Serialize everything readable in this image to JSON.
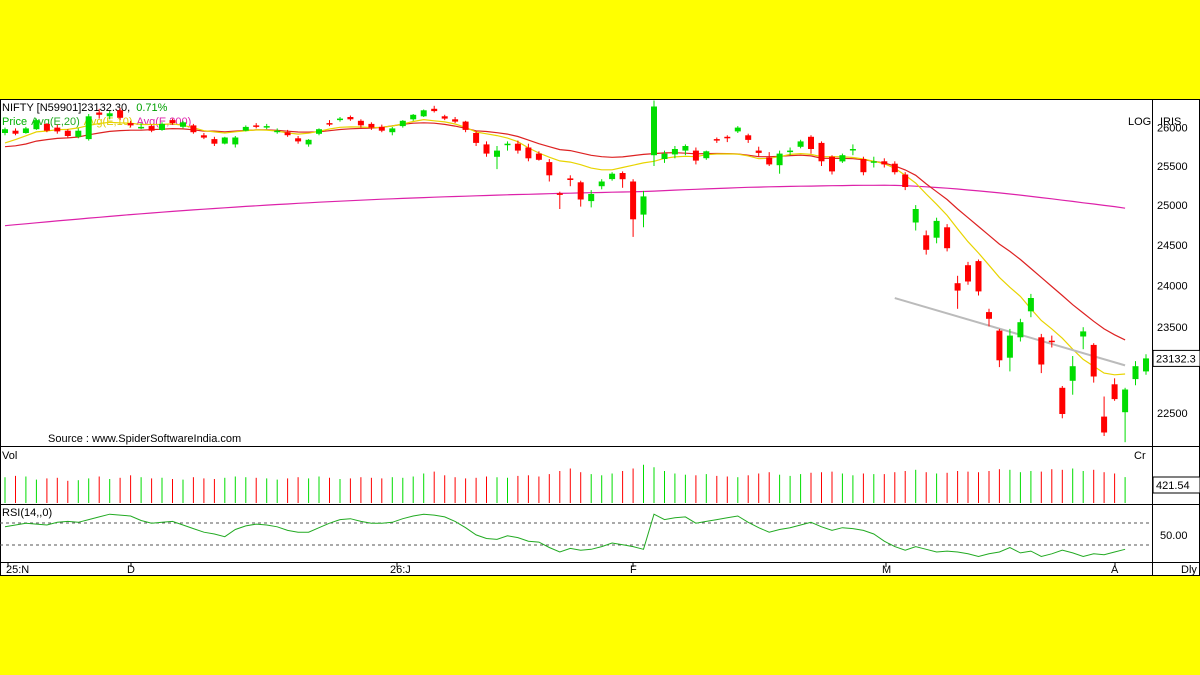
{
  "header": {
    "symbol": "NIFTY [N59901]",
    "last_value": "23132.30,",
    "change_pct": "0.71%",
    "legend": [
      {
        "label": "Price",
        "color": "#00c000"
      },
      {
        "label": "Avg(E,20)",
        "color": "#22aa22"
      },
      {
        "label": "Avg(E,10)",
        "color": "#e8d400"
      },
      {
        "label": "Avg(E,200)",
        "color": "#dd22aa"
      }
    ],
    "log_label": "LOG",
    "brand_label": "IRIS",
    "source": "Source : www.SpiderSoftwareIndia.com"
  },
  "price_axis": {
    "ticks": [
      "26000",
      "25500",
      "25000",
      "24500",
      "24000",
      "23500",
      "22500"
    ],
    "last_price_tag": "23132.3"
  },
  "volume_panel": {
    "label": "Vol",
    "unit_label": "Cr",
    "last_value_tag": "421.54"
  },
  "rsi_panel": {
    "label": "RSI(14,,0)",
    "level_tag": "50.00"
  },
  "x_axis": {
    "labels": [
      "25:N",
      "D",
      "26:J",
      "F",
      "M",
      "A"
    ],
    "period_label": "Dly"
  },
  "chart_data": {
    "type": "candlestick",
    "title": "NIFTY [N59901]",
    "scale": "log",
    "ylim": [
      22150,
      26300
    ],
    "price_ticks": [
      26000,
      25500,
      25000,
      24500,
      24000,
      23500,
      22500
    ],
    "x_labels": [
      "25:N",
      "D",
      "26:J",
      "F",
      "M",
      "A"
    ],
    "up_color": "#00dd00",
    "down_color": "#ff0000",
    "candles": [
      [
        25930,
        26000,
        25900,
        25980
      ],
      [
        25960,
        25990,
        25900,
        25920
      ],
      [
        25930,
        26010,
        25920,
        25990
      ],
      [
        25980,
        26120,
        25970,
        26100
      ],
      [
        26050,
        26060,
        25940,
        25960
      ],
      [
        26000,
        26040,
        25920,
        25950
      ],
      [
        25960,
        25980,
        25870,
        25890
      ],
      [
        25880,
        25990,
        25860,
        25960
      ],
      [
        25850,
        26180,
        25830,
        26150
      ],
      [
        26200,
        26250,
        26120,
        26170
      ],
      [
        26150,
        26220,
        26110,
        26190
      ],
      [
        26230,
        26260,
        26100,
        26130
      ],
      [
        26060,
        26090,
        26000,
        26030
      ],
      [
        26000,
        26060,
        25980,
        26010
      ],
      [
        26020,
        26040,
        25940,
        25960
      ],
      [
        25970,
        26070,
        25960,
        26050
      ],
      [
        26100,
        26120,
        26040,
        26060
      ],
      [
        26010,
        26090,
        25990,
        26070
      ],
      [
        26030,
        26050,
        25920,
        25940
      ],
      [
        25900,
        25930,
        25850,
        25870
      ],
      [
        25850,
        25880,
        25760,
        25790
      ],
      [
        25790,
        25880,
        25780,
        25870
      ],
      [
        25780,
        25890,
        25740,
        25870
      ],
      [
        25960,
        26030,
        25950,
        26010
      ],
      [
        26030,
        26060,
        25990,
        26020
      ],
      [
        26010,
        26050,
        25980,
        26020
      ],
      [
        25940,
        25990,
        25920,
        25960
      ],
      [
        25940,
        25970,
        25880,
        25900
      ],
      [
        25860,
        25890,
        25790,
        25820
      ],
      [
        25780,
        25850,
        25750,
        25840
      ],
      [
        25920,
        25990,
        25900,
        25980
      ],
      [
        26060,
        26100,
        26020,
        26050
      ],
      [
        26100,
        26140,
        26080,
        26120
      ],
      [
        26140,
        26160,
        26090,
        26110
      ],
      [
        26090,
        26110,
        26000,
        26030
      ],
      [
        26050,
        26070,
        25970,
        26000
      ],
      [
        26010,
        26040,
        25940,
        25960
      ],
      [
        25940,
        26010,
        25900,
        25990
      ],
      [
        26020,
        26100,
        26000,
        26090
      ],
      [
        26110,
        26180,
        26090,
        26170
      ],
      [
        26150,
        26240,
        26140,
        26230
      ],
      [
        26250,
        26290,
        26200,
        26220
      ],
      [
        26150,
        26170,
        26100,
        26120
      ],
      [
        26110,
        26140,
        26060,
        26080
      ],
      [
        26080,
        26090,
        25940,
        25970
      ],
      [
        25930,
        25960,
        25760,
        25800
      ],
      [
        25780,
        25820,
        25620,
        25660
      ],
      [
        25620,
        25760,
        25460,
        25700
      ],
      [
        25780,
        25820,
        25700,
        25790
      ],
      [
        25790,
        25830,
        25660,
        25700
      ],
      [
        25740,
        25790,
        25560,
        25600
      ],
      [
        25660,
        25690,
        25570,
        25580
      ],
      [
        25550,
        25590,
        25300,
        25380
      ],
      [
        25150,
        25170,
        24950,
        25130
      ],
      [
        25340,
        25380,
        25240,
        25320
      ],
      [
        25290,
        25310,
        24980,
        25070
      ],
      [
        25050,
        25190,
        24970,
        25140
      ],
      [
        25240,
        25330,
        25200,
        25300
      ],
      [
        25330,
        25420,
        25310,
        25400
      ],
      [
        25410,
        25430,
        25220,
        25330
      ],
      [
        25300,
        25330,
        24600,
        24820
      ],
      [
        24880,
        25180,
        24720,
        25110
      ],
      [
        25640,
        26360,
        25500,
        26280
      ],
      [
        25590,
        25700,
        25540,
        25660
      ],
      [
        25650,
        25760,
        25600,
        25720
      ],
      [
        25700,
        25780,
        25640,
        25760
      ],
      [
        25700,
        25740,
        25520,
        25570
      ],
      [
        25600,
        25700,
        25580,
        25690
      ],
      [
        25850,
        25870,
        25800,
        25840
      ],
      [
        25880,
        25900,
        25810,
        25860
      ],
      [
        25950,
        26020,
        25930,
        26000
      ],
      [
        25900,
        25920,
        25800,
        25840
      ],
      [
        25700,
        25750,
        25620,
        25670
      ],
      [
        25610,
        25680,
        25500,
        25520
      ],
      [
        25510,
        25700,
        25400,
        25660
      ],
      [
        25680,
        25740,
        25640,
        25700
      ],
      [
        25750,
        25840,
        25730,
        25820
      ],
      [
        25880,
        25900,
        25660,
        25720
      ],
      [
        25800,
        25820,
        25500,
        25560
      ],
      [
        25620,
        25640,
        25390,
        25430
      ],
      [
        25560,
        25660,
        25540,
        25640
      ],
      [
        25700,
        25780,
        25640,
        25720
      ],
      [
        25590,
        25620,
        25380,
        25420
      ],
      [
        25540,
        25620,
        25480,
        25560
      ],
      [
        25560,
        25600,
        25480,
        25520
      ],
      [
        25530,
        25560,
        25390,
        25420
      ],
      [
        25390,
        25420,
        25190,
        25230
      ],
      [
        24780,
        25000,
        24680,
        24950
      ],
      [
        24620,
        24680,
        24380,
        24440
      ],
      [
        24590,
        24840,
        24520,
        24800
      ],
      [
        24720,
        24760,
        24420,
        24460
      ],
      [
        24030,
        24120,
        23720,
        23940
      ],
      [
        24250,
        24290,
        24010,
        24050
      ],
      [
        24300,
        24320,
        23880,
        23930
      ],
      [
        23680,
        23720,
        23510,
        23600
      ],
      [
        23460,
        23480,
        23030,
        23110
      ],
      [
        23140,
        23480,
        22980,
        23400
      ],
      [
        23380,
        23600,
        23330,
        23560
      ],
      [
        23690,
        23900,
        23620,
        23850
      ],
      [
        23380,
        23420,
        22960,
        23060
      ],
      [
        23340,
        23400,
        23260,
        23330
      ],
      [
        22790,
        22810,
        22440,
        22490
      ],
      [
        22870,
        23160,
        22710,
        23040
      ],
      [
        23390,
        23500,
        23240,
        23450
      ],
      [
        23290,
        23310,
        22850,
        22920
      ],
      [
        22460,
        22690,
        22240,
        22280
      ],
      [
        22830,
        22900,
        22640,
        22660
      ],
      [
        22510,
        22790,
        22170,
        22770
      ],
      [
        22890,
        23100,
        22820,
        23040
      ],
      [
        22980,
        23180,
        22940,
        23132
      ]
    ],
    "ema10": [
      25800,
      25843,
      25893,
      25944,
      25956,
      25973,
      25977,
      25997,
      26029,
      26055,
      26070,
      26062,
      26059,
      26041,
      26042,
      26043,
      26049,
      26031,
      25999,
      25960,
      25944,
      25930,
      25946,
      25959,
      25970,
      25967,
      25955,
      25931,
      25915,
      25927,
      25952,
      25982,
      26004,
      26010,
      26008,
      26000,
      26005,
      26022,
      26050,
      26081,
      26106,
      26090,
      26076,
      26048,
      26004,
      25943,
      25919,
      25895,
      25863,
      25815,
      25735,
      25668,
      25614,
      25566,
      25550,
      25516,
      25473,
      25451,
      25451,
      25480,
      25510,
      25540,
      25560,
      25600,
      25618,
      25625,
      25620,
      25646,
      25655,
      25657,
      25654,
      25630,
      25594,
      25600,
      25620,
      25650,
      25660,
      25650,
      25620,
      25620,
      25620,
      25610,
      25590,
      25560,
      25530,
      25470,
      25380,
      25280,
      25140,
      25010,
      24870,
      24700,
      24540,
      24400,
      24250,
      24100,
      23980,
      23870,
      23720,
      23580,
      23480,
      23370,
      23240,
      23120,
      23040,
      22960,
      22940,
      22950
    ],
    "ema20": [
      25750,
      25762,
      25785,
      25823,
      25843,
      25859,
      25865,
      25877,
      25906,
      25930,
      25951,
      25961,
      25967,
      25966,
      25974,
      25980,
      25987,
      25983,
      25972,
      25955,
      25955,
      25945,
      25954,
      25962,
      25970,
      25970,
      25965,
      25953,
      25943,
      25941,
      25946,
      25960,
      25975,
      25985,
      25990,
      25993,
      26005,
      26023,
      26044,
      26058,
      26064,
      26058,
      26043,
      26020,
      25991,
      25958,
      25949,
      25934,
      25915,
      25884,
      25836,
      25790,
      25750,
      25712,
      25700,
      25670,
      25638,
      25620,
      25612,
      25617,
      25635,
      25650,
      25660,
      25670,
      25672,
      25665,
      25658,
      25660,
      25662,
      25660,
      25655,
      25640,
      25620,
      25620,
      25625,
      25634,
      25640,
      25630,
      25600,
      25598,
      25598,
      25594,
      25580,
      25560,
      25538,
      25500,
      25450,
      25380,
      25270,
      25170,
      25070,
      24950,
      24840,
      24730,
      24620,
      24510,
      24420,
      24320,
      24210,
      24100,
      23990,
      23880,
      23770,
      23670,
      23570,
      23480,
      23410,
      23350
    ],
    "ema200": [
      24740,
      24752,
      24764,
      24776,
      24788,
      24800,
      24812,
      24823,
      24835,
      24846,
      24857,
      24868,
      24879,
      24890,
      24900,
      24910,
      24920,
      24930,
      24939,
      24948,
      24957,
      24966,
      24974,
      24983,
      24991,
      24999,
      25007,
      25014,
      25022,
      25029,
      25036,
      25043,
      25049,
      25056,
      25062,
      25068,
      25074,
      25079,
      25085,
      25090,
      25095,
      25100,
      25105,
      25109,
      25113,
      25118,
      25122,
      25126,
      25130,
      25134,
      25137,
      25141,
      25144,
      25148,
      25151,
      25154,
      25157,
      25160,
      25163,
      25166,
      25169,
      25172,
      25178,
      25184,
      25190,
      25196,
      25201,
      25206,
      25211,
      25216,
      25221,
      25226,
      25229,
      25232,
      25235,
      25238,
      25240,
      25242,
      25244,
      25246,
      25248,
      25250,
      25251,
      25252,
      25253,
      25250,
      25246,
      25240,
      25232,
      25224,
      25214,
      25204,
      25192,
      25180,
      25167,
      25154,
      25140,
      25126,
      25110,
      25095,
      25079,
      25062,
      25046,
      25029,
      25013,
      24996,
      24980,
      24960
    ],
    "trendline": {
      "from": [
        85,
        23850
      ],
      "to": [
        107,
        23050
      ],
      "color": "#bbbbbb"
    },
    "volume": {
      "label": "Vol",
      "unit": "Cr",
      "last": 421.54,
      "values": [
        420,
        440,
        430,
        380,
        400,
        410,
        360,
        370,
        400,
        430,
        390,
        410,
        450,
        420,
        400,
        410,
        390,
        380,
        420,
        400,
        390,
        410,
        430,
        420,
        410,
        400,
        380,
        400,
        420,
        400,
        430,
        410,
        390,
        400,
        420,
        410,
        400,
        420,
        410,
        430,
        480,
        510,
        450,
        420,
        400,
        410,
        430,
        420,
        410,
        440,
        450,
        430,
        470,
        520,
        560,
        500,
        470,
        450,
        480,
        520,
        560,
        620,
        580,
        520,
        480,
        460,
        450,
        470,
        440,
        430,
        420,
        450,
        480,
        500,
        460,
        440,
        470,
        490,
        500,
        510,
        480,
        450,
        480,
        470,
        470,
        500,
        520,
        540,
        500,
        480,
        490,
        520,
        510,
        500,
        520,
        550,
        540,
        500,
        520,
        510,
        550,
        540,
        560,
        520,
        540,
        500,
        480,
        421.54
      ]
    },
    "rsi": {
      "label": "RSI(14,,0)",
      "period": 14,
      "level_label": 50.0,
      "values": [
        58,
        60,
        62,
        61,
        60,
        63,
        64,
        63,
        66,
        69,
        72,
        71,
        70,
        65,
        62,
        63,
        64,
        60,
        56,
        52,
        50,
        47,
        55,
        59,
        61,
        60,
        58,
        54,
        52,
        52,
        57,
        62,
        66,
        67,
        64,
        62,
        62,
        63,
        67,
        70,
        72,
        71,
        69,
        64,
        57,
        49,
        45,
        44,
        48,
        46,
        42,
        41,
        35,
        30,
        34,
        32,
        33,
        36,
        40,
        38,
        36,
        33,
        72,
        66,
        68,
        69,
        62,
        64,
        66,
        68,
        70,
        63,
        57,
        52,
        55,
        57,
        60,
        63,
        58,
        54,
        57,
        56,
        54,
        50,
        42,
        36,
        32,
        36,
        33,
        30,
        31,
        30,
        28,
        25,
        28,
        30,
        35,
        29,
        31,
        25,
        28,
        32,
        29,
        25,
        28,
        27,
        30,
        33
      ]
    }
  }
}
